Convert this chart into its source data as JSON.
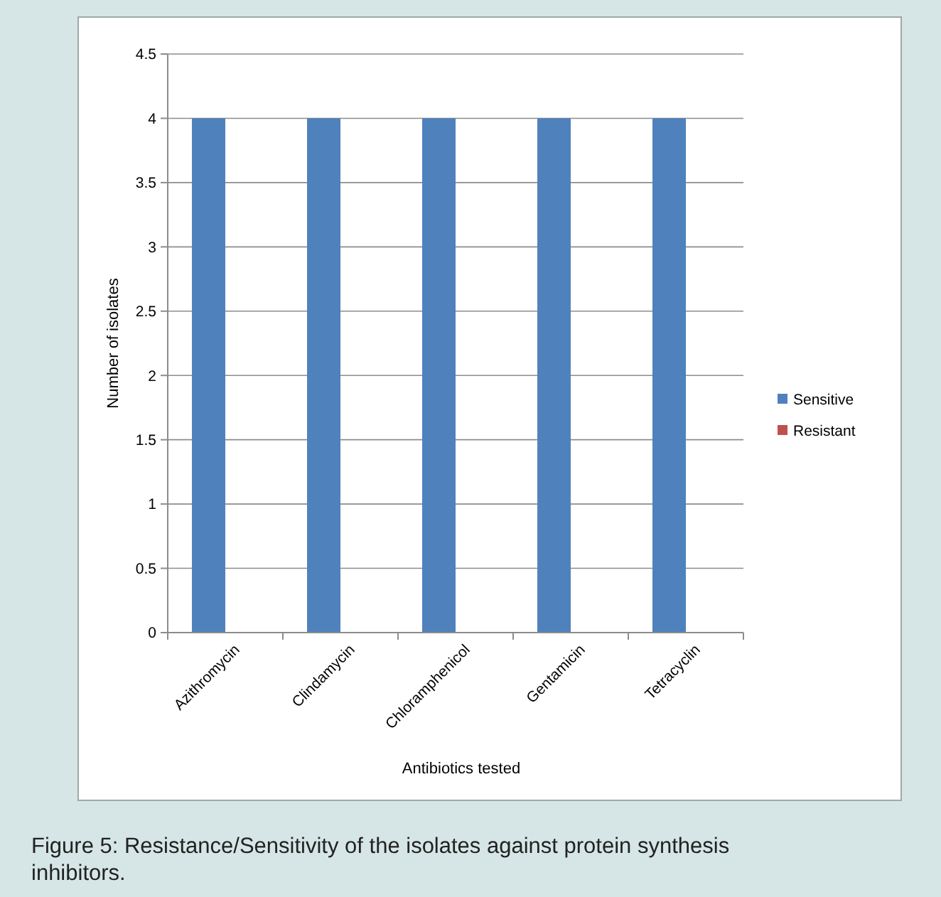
{
  "chart_data": {
    "type": "bar",
    "xlabel": "Antibiotics tested",
    "ylabel": "Number of isolates",
    "categories": [
      "Azithromycin",
      "Clindamycin",
      "Chloramphenicol",
      "Gentamicin",
      "Tetracyclin"
    ],
    "series": [
      {
        "name": "Sensitive",
        "color": "#4f81bd",
        "values": [
          4,
          4,
          4,
          4,
          4
        ]
      },
      {
        "name": "Resistant",
        "color": "#c0504d",
        "values": [
          0,
          0,
          0,
          0,
          0
        ]
      }
    ],
    "ylim": [
      0,
      4.5
    ],
    "yticks": [
      0,
      0.5,
      1,
      1.5,
      2,
      2.5,
      3,
      3.5,
      4,
      4.5
    ],
    "grid": "y",
    "legend": "right",
    "annotations": [
      "Figure 5: Resistance/Sensitivity of the isolates against protein synthesis inhibitors."
    ]
  }
}
